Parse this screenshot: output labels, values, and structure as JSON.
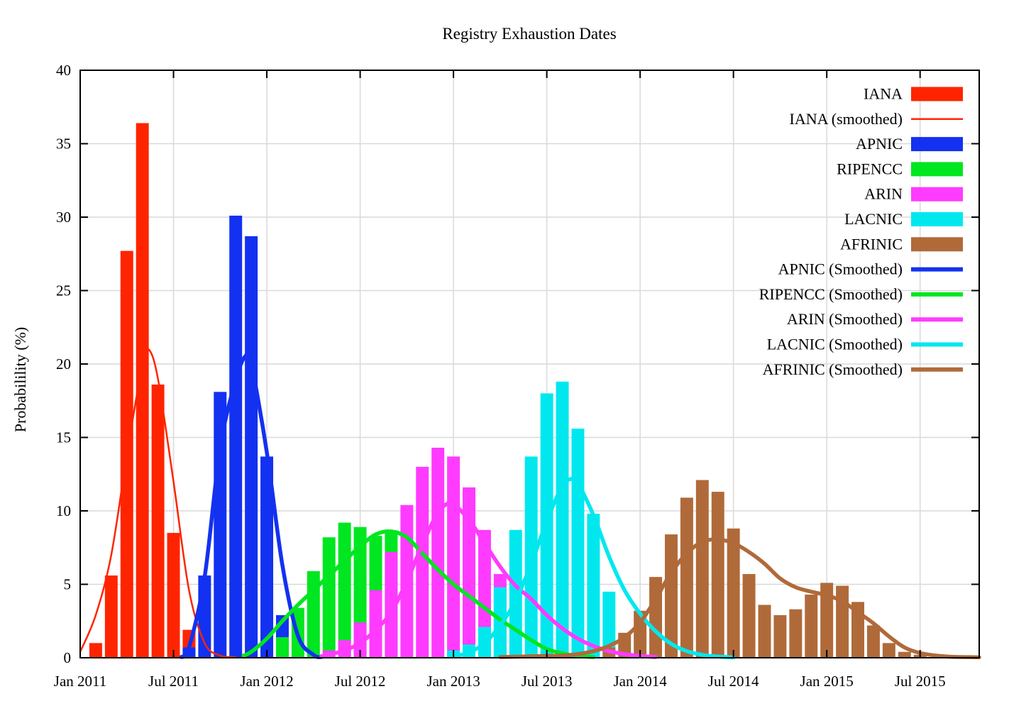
{
  "page": {
    "background": "#ffffff"
  },
  "chart_data": {
    "type": "bar",
    "title": "Registry Exhaustion Dates",
    "ylabel": "Probabilility (%)",
    "xlabel": "",
    "ylim": [
      0,
      40
    ],
    "ytick_step": 5,
    "ytick_labels": [
      "0",
      "5",
      "10",
      "15",
      "20",
      "25",
      "30",
      "35",
      "40"
    ],
    "grid": true,
    "grid_color": "#d9d9d9",
    "axis_color": "#000000",
    "legend_position": "top-right",
    "x_axis_unit": "months offset from Jan 2011",
    "x_domain_months": [
      0,
      57.8
    ],
    "xticks": [
      {
        "m": 0,
        "label": "Jan 2011"
      },
      {
        "m": 6,
        "label": "Jul 2011"
      },
      {
        "m": 12,
        "label": "Jan 2012"
      },
      {
        "m": 18,
        "label": "Jul 2012"
      },
      {
        "m": 24,
        "label": "Jan 2013"
      },
      {
        "m": 30,
        "label": "Jul 2013"
      },
      {
        "m": 36,
        "label": "Jan 2014"
      },
      {
        "m": 42,
        "label": "Jul 2014"
      },
      {
        "m": 48,
        "label": "Jan 2015"
      },
      {
        "m": 54,
        "label": "Jul 2015"
      }
    ],
    "bar_width_months": 0.82,
    "colors": {
      "IANA": "#ff2400",
      "APNIC": "#1331f0",
      "RIPENCC": "#00e620",
      "ARIN": "#ff3bff",
      "LACNIC": "#00e8ee",
      "AFRINIC": "#b06a3a"
    },
    "series": [
      {
        "name": "IANA",
        "color": "#ff2400",
        "bars": [
          {
            "m": 1,
            "month": "Feb 2011",
            "percent": 1.0
          },
          {
            "m": 2,
            "month": "Mar 2011",
            "percent": 5.6
          },
          {
            "m": 3,
            "month": "Apr 2011",
            "percent": 27.7
          },
          {
            "m": 4,
            "month": "May 2011",
            "percent": 36.4
          },
          {
            "m": 5,
            "month": "Jun 2011",
            "percent": 18.6
          },
          {
            "m": 6,
            "month": "Jul 2011",
            "percent": 8.5
          },
          {
            "m": 7,
            "month": "Aug 2011",
            "percent": 1.9
          }
        ]
      },
      {
        "name": "APNIC",
        "color": "#1331f0",
        "bars": [
          {
            "m": 7,
            "month": "Aug 2011",
            "percent": 0.7
          },
          {
            "m": 8,
            "month": "Sep 2011",
            "percent": 5.6
          },
          {
            "m": 9,
            "month": "Oct 2011",
            "percent": 18.1
          },
          {
            "m": 10,
            "month": "Nov 2011",
            "percent": 30.1
          },
          {
            "m": 11,
            "month": "Dec 2011",
            "percent": 28.7
          },
          {
            "m": 12,
            "month": "Jan 2012",
            "percent": 13.7
          },
          {
            "m": 13,
            "month": "Feb 2012",
            "percent": 2.9
          }
        ]
      },
      {
        "name": "RIPENCC",
        "color": "#00e620",
        "bars": [
          {
            "m": 13,
            "month": "Feb 2012",
            "percent": 1.4
          },
          {
            "m": 14,
            "month": "Mar 2012",
            "percent": 3.4
          },
          {
            "m": 15,
            "month": "Apr 2012",
            "percent": 5.9
          },
          {
            "m": 16,
            "month": "May 2012",
            "percent": 8.2
          },
          {
            "m": 17,
            "month": "Jun 2012",
            "percent": 9.2
          },
          {
            "m": 18,
            "month": "Jul 2012",
            "percent": 8.9
          },
          {
            "m": 19,
            "month": "Aug 2012",
            "percent": 8.3
          },
          {
            "m": 20,
            "month": "Sep 2012",
            "percent": 8.5
          }
        ]
      },
      {
        "name": "ARIN",
        "color": "#ff3bff",
        "bars": [
          {
            "m": 16,
            "month": "May 2012",
            "percent": 0.5
          },
          {
            "m": 17,
            "month": "Jun 2012",
            "percent": 1.2
          },
          {
            "m": 18,
            "month": "Jul 2012",
            "percent": 2.4
          },
          {
            "m": 19,
            "month": "Aug 2012",
            "percent": 4.6
          },
          {
            "m": 20,
            "month": "Sep 2012",
            "percent": 7.2
          },
          {
            "m": 21,
            "month": "Oct 2012",
            "percent": 10.4
          },
          {
            "m": 22,
            "month": "Nov 2012",
            "percent": 13.0
          },
          {
            "m": 23,
            "month": "Dec 2012",
            "percent": 14.3
          },
          {
            "m": 24,
            "month": "Jan 2013",
            "percent": 13.7
          },
          {
            "m": 25,
            "month": "Feb 2013",
            "percent": 11.6
          },
          {
            "m": 26,
            "month": "Mar 2013",
            "percent": 8.7
          },
          {
            "m": 27,
            "month": "Apr 2013",
            "percent": 5.7
          }
        ]
      },
      {
        "name": "LACNIC",
        "color": "#00e8ee",
        "bars": [
          {
            "m": 24,
            "month": "Jan 2013",
            "percent": 0.5
          },
          {
            "m": 25,
            "month": "Feb 2013",
            "percent": 0.9
          },
          {
            "m": 26,
            "month": "Mar 2013",
            "percent": 2.1
          },
          {
            "m": 27,
            "month": "Apr 2013",
            "percent": 4.8
          },
          {
            "m": 28,
            "month": "May 2013",
            "percent": 8.7
          },
          {
            "m": 29,
            "month": "Jun 2013",
            "percent": 13.7
          },
          {
            "m": 30,
            "month": "Jul 2013",
            "percent": 18.0
          },
          {
            "m": 31,
            "month": "Aug 2013",
            "percent": 18.8
          },
          {
            "m": 32,
            "month": "Sep 2013",
            "percent": 15.6
          },
          {
            "m": 33,
            "month": "Oct 2013",
            "percent": 9.8
          },
          {
            "m": 34,
            "month": "Nov 2013",
            "percent": 4.5
          }
        ]
      },
      {
        "name": "AFRINIC",
        "color": "#b06a3a",
        "bars": [
          {
            "m": 34,
            "month": "Nov 2013",
            "percent": 0.7
          },
          {
            "m": 35,
            "month": "Dec 2013",
            "percent": 1.7
          },
          {
            "m": 36,
            "month": "Jan 2014",
            "percent": 3.2
          },
          {
            "m": 37,
            "month": "Feb 2014",
            "percent": 5.5
          },
          {
            "m": 38,
            "month": "Mar 2014",
            "percent": 8.4
          },
          {
            "m": 39,
            "month": "Apr 2014",
            "percent": 10.9
          },
          {
            "m": 40,
            "month": "May 2014",
            "percent": 12.1
          },
          {
            "m": 41,
            "month": "Jun 2014",
            "percent": 11.3
          },
          {
            "m": 42,
            "month": "Jul 2014",
            "percent": 8.8
          },
          {
            "m": 43,
            "month": "Aug 2014",
            "percent": 5.7
          },
          {
            "m": 44,
            "month": "Sep 2014",
            "percent": 3.6
          },
          {
            "m": 45,
            "month": "Oct 2014",
            "percent": 2.9
          },
          {
            "m": 46,
            "month": "Nov 2014",
            "percent": 3.3
          },
          {
            "m": 47,
            "month": "Dec 2014",
            "percent": 4.3
          },
          {
            "m": 48,
            "month": "Jan 2015",
            "percent": 5.1
          },
          {
            "m": 49,
            "month": "Feb 2015",
            "percent": 4.9
          },
          {
            "m": 50,
            "month": "Mar 2015",
            "percent": 3.8
          },
          {
            "m": 51,
            "month": "Apr 2015",
            "percent": 2.2
          },
          {
            "m": 52,
            "month": "May 2015",
            "percent": 1.0
          },
          {
            "m": 53,
            "month": "Jun 2015",
            "percent": 0.4
          },
          {
            "m": 54,
            "month": "Jul 2015",
            "percent": 0.2
          }
        ]
      }
    ],
    "curves": [
      {
        "name": "IANA (smoothed)",
        "color": "#ff2400",
        "stroke_width": 2.5,
        "points": [
          [
            0,
            0.4
          ],
          [
            1,
            2.9
          ],
          [
            2,
            7.0
          ],
          [
            3,
            13.8
          ],
          [
            4,
            20.0
          ],
          [
            4.4,
            21.0
          ],
          [
            5,
            19.0
          ],
          [
            6,
            12.0
          ],
          [
            7,
            4.6
          ],
          [
            8,
            1.0
          ],
          [
            9,
            0.15
          ],
          [
            10,
            0.05
          ]
        ]
      },
      {
        "name": "APNIC (Smoothed)",
        "color": "#1331f0",
        "stroke_width": 5.5,
        "points": [
          [
            6.5,
            0.05
          ],
          [
            7,
            0.7
          ],
          [
            8,
            5.5
          ],
          [
            9,
            14.3
          ],
          [
            10,
            18.9
          ],
          [
            10.6,
            20.5
          ],
          [
            11,
            20.0
          ],
          [
            12,
            14.0
          ],
          [
            13,
            6.3
          ],
          [
            14,
            1.5
          ],
          [
            15,
            0.2
          ],
          [
            15.5,
            0.05
          ]
        ]
      },
      {
        "name": "RIPENCC (Smoothed)",
        "color": "#00e620",
        "stroke_width": 5.5,
        "points": [
          [
            10.5,
            0.15
          ],
          [
            11,
            0.4
          ],
          [
            12,
            1.3
          ],
          [
            13,
            2.5
          ],
          [
            14,
            3.6
          ],
          [
            15,
            4.6
          ],
          [
            16,
            5.6
          ],
          [
            17,
            6.6
          ],
          [
            18,
            7.6
          ],
          [
            19,
            8.4
          ],
          [
            20,
            8.6
          ],
          [
            21,
            8.2
          ],
          [
            22,
            7.1
          ],
          [
            23,
            6.0
          ],
          [
            24,
            5.0
          ],
          [
            25,
            4.2
          ],
          [
            26,
            3.4
          ],
          [
            27,
            2.6
          ],
          [
            28,
            1.9
          ],
          [
            29,
            1.2
          ],
          [
            30,
            0.6
          ],
          [
            31,
            0.3
          ],
          [
            32,
            0.12
          ],
          [
            33,
            0.05
          ]
        ]
      },
      {
        "name": "ARIN (Smoothed)",
        "color": "#ff3bff",
        "stroke_width": 5.5,
        "points": [
          [
            15.5,
            0.1
          ],
          [
            16,
            0.2
          ],
          [
            17,
            0.5
          ],
          [
            18,
            1.0
          ],
          [
            19,
            1.9
          ],
          [
            20,
            3.1
          ],
          [
            21,
            5.2
          ],
          [
            22,
            7.7
          ],
          [
            23,
            9.9
          ],
          [
            23.8,
            10.6
          ],
          [
            24,
            10.5
          ],
          [
            25,
            9.4
          ],
          [
            26,
            7.8
          ],
          [
            27,
            6.2
          ],
          [
            28,
            4.9
          ],
          [
            29,
            4.0
          ],
          [
            30,
            2.9
          ],
          [
            31,
            2.0
          ],
          [
            32,
            1.3
          ],
          [
            33,
            0.8
          ],
          [
            34,
            0.45
          ],
          [
            35,
            0.25
          ],
          [
            36,
            0.12
          ],
          [
            37,
            0.05
          ]
        ]
      },
      {
        "name": "LACNIC (Smoothed)",
        "color": "#00e8ee",
        "stroke_width": 5.5,
        "points": [
          [
            24,
            0.1
          ],
          [
            25,
            0.35
          ],
          [
            26,
            1.0
          ],
          [
            27,
            2.2
          ],
          [
            28,
            3.9
          ],
          [
            29,
            6.4
          ],
          [
            30,
            9.3
          ],
          [
            31,
            11.7
          ],
          [
            31.7,
            12.2
          ],
          [
            32,
            11.9
          ],
          [
            33,
            9.7
          ],
          [
            34,
            6.9
          ],
          [
            35,
            4.6
          ],
          [
            36,
            3.0
          ],
          [
            37,
            1.8
          ],
          [
            38,
            0.95
          ],
          [
            39,
            0.45
          ],
          [
            40,
            0.2
          ],
          [
            41,
            0.08
          ],
          [
            42,
            0.03
          ]
        ]
      },
      {
        "name": "AFRINIC (Smoothed)",
        "color": "#b06a3a",
        "stroke_width": 5.5,
        "points": [
          [
            27,
            0.05
          ],
          [
            29,
            0.1
          ],
          [
            31,
            0.15
          ],
          [
            32,
            0.25
          ],
          [
            33,
            0.45
          ],
          [
            34,
            0.8
          ],
          [
            35,
            1.4
          ],
          [
            36,
            2.4
          ],
          [
            37,
            4.0
          ],
          [
            38,
            5.8
          ],
          [
            39,
            7.1
          ],
          [
            40,
            7.9
          ],
          [
            41,
            8.05
          ],
          [
            42,
            7.8
          ],
          [
            43,
            7.2
          ],
          [
            44,
            6.4
          ],
          [
            45,
            5.4
          ],
          [
            46,
            4.8
          ],
          [
            47,
            4.5
          ],
          [
            48,
            4.25
          ],
          [
            49,
            3.85
          ],
          [
            50,
            3.1
          ],
          [
            51,
            2.35
          ],
          [
            52,
            1.45
          ],
          [
            53,
            0.7
          ],
          [
            54,
            0.32
          ],
          [
            55,
            0.15
          ],
          [
            56,
            0.07
          ],
          [
            57.8,
            0.03
          ]
        ]
      }
    ],
    "legend": [
      {
        "label": "IANA",
        "swatch": "box",
        "color": "#ff2400"
      },
      {
        "label": "IANA (smoothed)",
        "swatch": "thin-line",
        "color": "#ff2400"
      },
      {
        "label": "APNIC",
        "swatch": "box",
        "color": "#1331f0"
      },
      {
        "label": "RIPENCC",
        "swatch": "box",
        "color": "#00e620"
      },
      {
        "label": "ARIN",
        "swatch": "box",
        "color": "#ff3bff"
      },
      {
        "label": "LACNIC",
        "swatch": "box",
        "color": "#00e8ee"
      },
      {
        "label": "AFRINIC",
        "swatch": "box",
        "color": "#b06a3a"
      },
      {
        "label": "APNIC (Smoothed)",
        "swatch": "thick-line",
        "color": "#1331f0"
      },
      {
        "label": "RIPENCC (Smoothed)",
        "swatch": "thick-line",
        "color": "#00e620"
      },
      {
        "label": "ARIN (Smoothed)",
        "swatch": "thick-line",
        "color": "#ff3bff"
      },
      {
        "label": "LACNIC (Smoothed)",
        "swatch": "thick-line",
        "color": "#00e8ee"
      },
      {
        "label": "AFRINIC (Smoothed)",
        "swatch": "thick-line",
        "color": "#b06a3a"
      }
    ]
  }
}
